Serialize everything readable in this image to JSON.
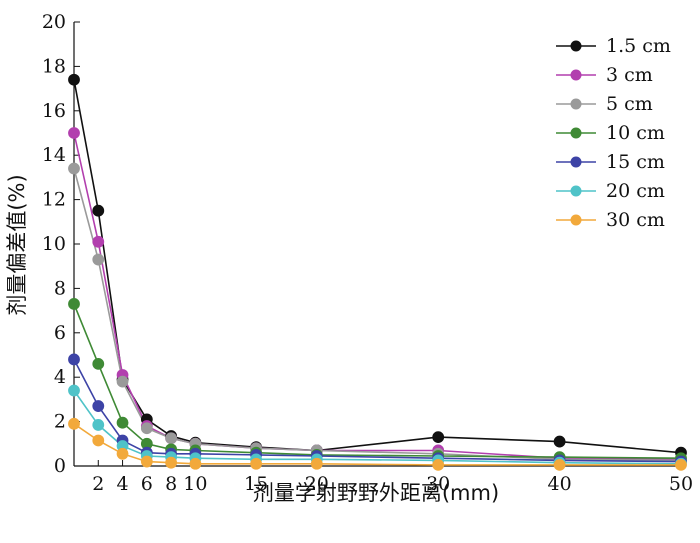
{
  "chart_data": {
    "type": "line",
    "xlabel": "剂量学射野野外距离(mm)",
    "ylabel": "剂量偏差值(%)",
    "xlim": [
      0,
      50
    ],
    "ylim": [
      0,
      20
    ],
    "x_ticks": [
      2,
      4,
      6,
      8,
      10,
      15,
      20,
      30,
      40,
      50
    ],
    "y_ticks": [
      0,
      2,
      4,
      6,
      8,
      10,
      12,
      14,
      16,
      18,
      20
    ],
    "grid": false,
    "legend_position": "top-right",
    "x": [
      0,
      2,
      4,
      6,
      8,
      10,
      15,
      20,
      30,
      40,
      50
    ],
    "series": [
      {
        "name": "1.5 cm",
        "color": "#111111",
        "values": [
          17.4,
          11.5,
          3.9,
          2.1,
          1.35,
          1.05,
          0.85,
          0.7,
          1.3,
          1.1,
          0.6
        ]
      },
      {
        "name": "3 cm",
        "color": "#b23fae",
        "values": [
          15.0,
          10.1,
          4.1,
          1.8,
          1.25,
          1.0,
          0.8,
          0.7,
          0.7,
          0.35,
          0.3
        ]
      },
      {
        "name": "5 cm",
        "color": "#9a9a9a",
        "values": [
          13.4,
          9.3,
          3.8,
          1.7,
          1.25,
          1.0,
          0.8,
          0.7,
          0.55,
          0.3,
          0.25
        ]
      },
      {
        "name": "10 cm",
        "color": "#3f8a35",
        "values": [
          7.3,
          4.6,
          1.95,
          1.0,
          0.75,
          0.7,
          0.6,
          0.5,
          0.45,
          0.4,
          0.35
        ]
      },
      {
        "name": "15 cm",
        "color": "#3d43a6",
        "values": [
          4.8,
          2.7,
          1.15,
          0.6,
          0.55,
          0.55,
          0.5,
          0.45,
          0.35,
          0.25,
          0.2
        ]
      },
      {
        "name": "20 cm",
        "color": "#4fc3c8",
        "values": [
          3.4,
          1.85,
          0.9,
          0.45,
          0.4,
          0.35,
          0.3,
          0.3,
          0.25,
          0.15,
          0.1
        ]
      },
      {
        "name": "30 cm",
        "color": "#f2a93b",
        "values": [
          1.9,
          1.15,
          0.55,
          0.2,
          0.15,
          0.1,
          0.1,
          0.1,
          0.05,
          0.05,
          0.05
        ]
      }
    ]
  }
}
